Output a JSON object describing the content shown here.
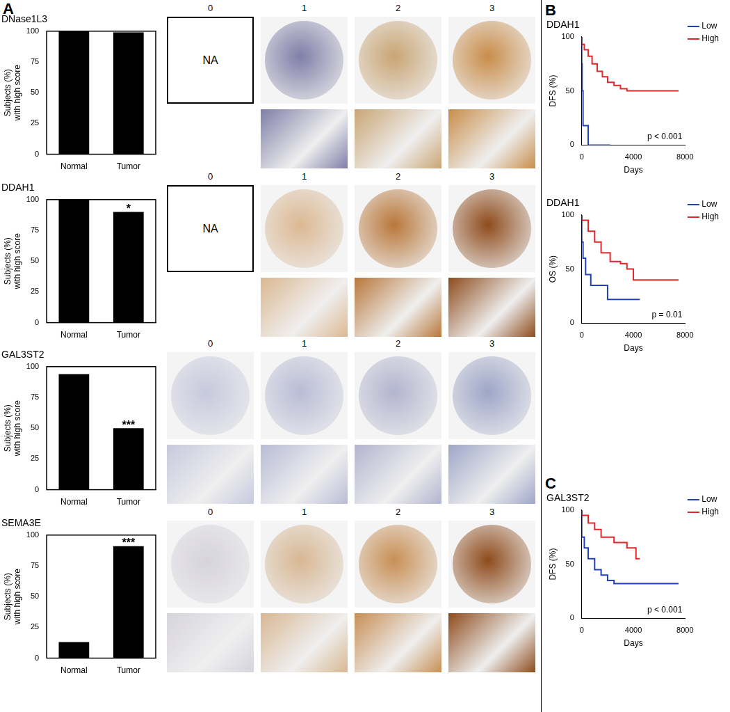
{
  "panel_labels": [
    "A",
    "B",
    "C"
  ],
  "ihc": {
    "scores": [
      "0",
      "1",
      "2",
      "3"
    ],
    "na_label": "NA",
    "na_in_score_0": [
      true,
      true,
      false,
      false
    ]
  },
  "chart_data": [
    {
      "type": "bar",
      "title": "DNase1L3",
      "categories": [
        "Normal",
        "Tumor"
      ],
      "values": [
        100,
        99
      ],
      "color": "#000000",
      "ylabel": [
        "Subjects (%)",
        "with high score"
      ],
      "ylim": [
        0,
        100
      ],
      "yticks": [
        0,
        25,
        50,
        75,
        100
      ],
      "grid": false
    },
    {
      "type": "bar",
      "title": "DDAH1",
      "categories": [
        "Normal",
        "Tumor"
      ],
      "values": [
        100,
        90
      ],
      "color": "#000000",
      "ylabel": [
        "Subjects (%)",
        "with high score"
      ],
      "ylim": [
        0,
        100
      ],
      "yticks": [
        0,
        25,
        50,
        75,
        100
      ],
      "grid": false,
      "annotations": [
        {
          "category": "Tumor",
          "text": "*"
        }
      ]
    },
    {
      "type": "bar",
      "title": "GAL3ST2",
      "categories": [
        "Normal",
        "Tumor"
      ],
      "values": [
        94,
        50
      ],
      "color": "#000000",
      "ylabel": [
        "Subjects (%)",
        "with high score"
      ],
      "ylim": [
        0,
        100
      ],
      "yticks": [
        0,
        25,
        50,
        75,
        100
      ],
      "grid": false,
      "annotations": [
        {
          "category": "Tumor",
          "text": "***"
        }
      ]
    },
    {
      "type": "bar",
      "title": "SEMA3E",
      "categories": [
        "Normal",
        "Tumor"
      ],
      "values": [
        13,
        91
      ],
      "color": "#000000",
      "ylabel": [
        "Subjects (%)",
        "with high score"
      ],
      "ylim": [
        0,
        100
      ],
      "yticks": [
        0,
        25,
        50,
        75,
        100
      ],
      "grid": false,
      "annotations": [
        {
          "category": "Tumor",
          "text": "***"
        }
      ]
    },
    {
      "type": "line",
      "title": "DDAH1",
      "xlabel": "Days",
      "ylabel": "DFS (%)",
      "series": [
        {
          "name": "Low",
          "color": "#1f3fbf",
          "x": [
            0,
            30,
            100,
            500,
            2200
          ],
          "values": [
            100,
            75,
            50,
            18,
            0
          ]
        },
        {
          "name": "High",
          "color": "#e3262a",
          "x": [
            0,
            200,
            500,
            800,
            1200,
            1600,
            2000,
            2500,
            3000,
            3500,
            4000,
            7500
          ],
          "values": [
            100,
            93,
            88,
            82,
            75,
            68,
            63,
            58,
            55,
            52,
            50,
            50
          ]
        }
      ],
      "xlim": [
        0,
        8000
      ],
      "xticks": [
        0,
        4000,
        8000
      ],
      "ylim": [
        0,
        100
      ],
      "yticks": [
        0,
        50,
        100
      ],
      "grid": false,
      "legend": "right",
      "line_style": "step",
      "annotations": [
        {
          "text": "p < 0.001"
        }
      ]
    },
    {
      "type": "line",
      "title": "DDAH1",
      "xlabel": "Days",
      "ylabel": "OS (%)",
      "series": [
        {
          "name": "Low",
          "color": "#1f3fbf",
          "x": [
            0,
            100,
            300,
            700,
            2000,
            2500,
            4500
          ],
          "values": [
            100,
            75,
            60,
            45,
            35,
            22,
            22
          ]
        },
        {
          "name": "High",
          "color": "#e3262a",
          "x": [
            0,
            500,
            1000,
            1500,
            2200,
            3000,
            3500,
            4000,
            4500,
            7500
          ],
          "values": [
            100,
            95,
            85,
            75,
            65,
            57,
            55,
            50,
            40,
            40
          ]
        }
      ],
      "xlim": [
        0,
        8000
      ],
      "xticks": [
        0,
        4000,
        8000
      ],
      "ylim": [
        0,
        100
      ],
      "yticks": [
        0,
        50,
        100
      ],
      "grid": false,
      "legend": "right",
      "line_style": "step",
      "annotations": [
        {
          "text": "p = 0.01"
        }
      ]
    },
    {
      "type": "line",
      "title": "GAL3ST2",
      "xlabel": "Days",
      "ylabel": "DFS (%)",
      "series": [
        {
          "name": "Low",
          "color": "#1f3fbf",
          "x": [
            0,
            200,
            500,
            1000,
            1500,
            2000,
            2500,
            3000,
            7500
          ],
          "values": [
            100,
            75,
            65,
            55,
            45,
            40,
            35,
            32,
            32
          ]
        },
        {
          "name": "High",
          "color": "#e3262a",
          "x": [
            0,
            500,
            1000,
            1500,
            2500,
            3500,
            4200,
            4400,
            4500
          ],
          "values": [
            100,
            95,
            88,
            82,
            75,
            70,
            65,
            55,
            55
          ]
        }
      ],
      "xlim": [
        0,
        8000
      ],
      "xticks": [
        0,
        4000,
        8000
      ],
      "ylim": [
        0,
        100
      ],
      "yticks": [
        0,
        50,
        100
      ],
      "grid": false,
      "legend": "right",
      "line_style": "step",
      "annotations": [
        {
          "text": "p < 0.001"
        }
      ]
    }
  ]
}
